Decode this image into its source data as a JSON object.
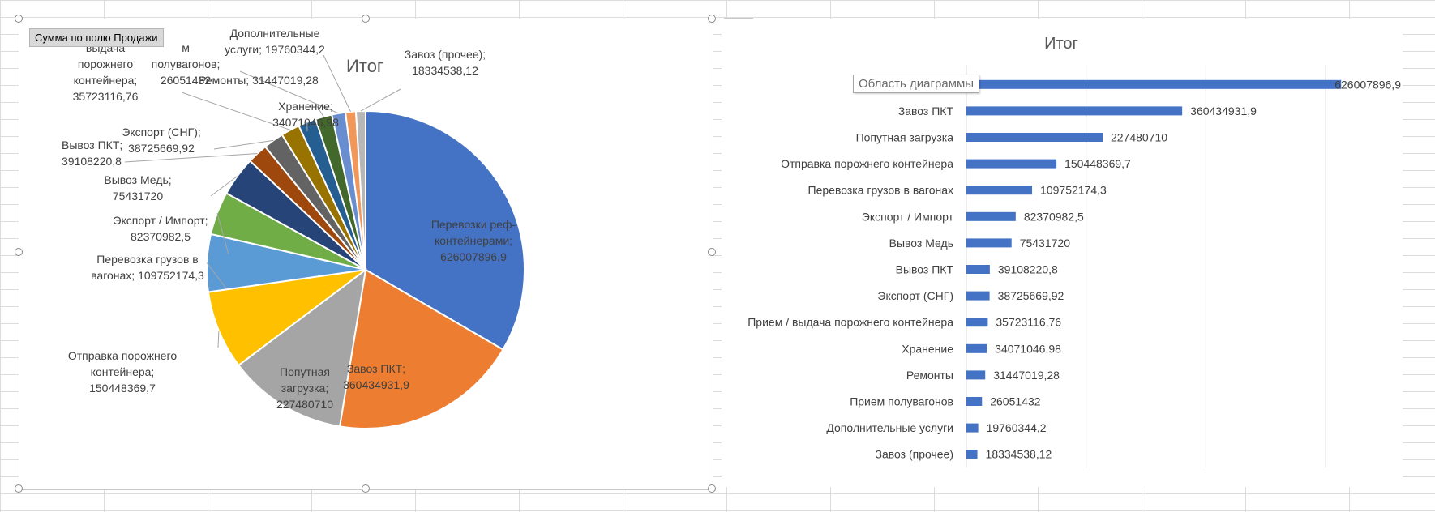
{
  "pie_field_button": "Сумма по полю Продажи",
  "tooltip": "Область диаграммы",
  "chart_data": [
    {
      "type": "pie",
      "title": "Итог",
      "slices": [
        {
          "label": "Перевозки реф-контейнерами",
          "value": 626007896.9,
          "display": "626007896,9",
          "color": "#4472C4"
        },
        {
          "label": "Завоз ПКТ",
          "value": 360434931.9,
          "display": "360434931,9",
          "color": "#ED7D31"
        },
        {
          "label": "Попутная загрузка",
          "value": 227480710,
          "display": "227480710",
          "color": "#A5A5A5"
        },
        {
          "label": "Отправка порожнего контейнера",
          "value": 150448369.7,
          "display": "150448369,7",
          "color": "#FFC000"
        },
        {
          "label": "Перевозка грузов в вагонах",
          "value": 109752174.3,
          "display": "109752174,3",
          "color": "#5B9BD5"
        },
        {
          "label": "Экспорт / Импорт",
          "value": 82370982.5,
          "display": "82370982,5",
          "color": "#70AD47"
        },
        {
          "label": "Вывоз Медь",
          "value": 75431720,
          "display": "75431720",
          "color": "#264478"
        },
        {
          "label": "Вывоз ПКТ",
          "value": 39108220.8,
          "display": "39108220,8",
          "color": "#9E480E"
        },
        {
          "label": "Экспорт (СНГ)",
          "value": 38725669.92,
          "display": "38725669,92",
          "color": "#636363"
        },
        {
          "label": "Прием / выдача порожнего контейнера",
          "value": 35723116.76,
          "display": "35723116,76",
          "color": "#997300"
        },
        {
          "label": "Хранение",
          "value": 34071046.98,
          "display": "34071046,98",
          "color": "#255E91"
        },
        {
          "label": "Ремонты",
          "value": 31447019.28,
          "display": "31447019,28",
          "color": "#43682B"
        },
        {
          "label": "Прием полувагонов",
          "value": 26051432,
          "display": "26051432",
          "color": "#698ED0"
        },
        {
          "label": "Дополнительные услуги",
          "value": 19760344.2,
          "display": "19760344,2",
          "color": "#F1975A"
        },
        {
          "label": "Завоз (прочее)",
          "value": 18334538.12,
          "display": "18334538,12",
          "color": "#B7B7B7"
        }
      ],
      "data_labels": [
        {
          "lines": [
            "Перевозки реф-",
            "контейнерами;",
            "626007896,9"
          ]
        },
        {
          "lines": [
            "Завоз ПКТ;",
            "360434931,9"
          ]
        },
        {
          "lines": [
            "Попутная",
            "загрузка;",
            "227480710"
          ]
        },
        {
          "lines": [
            "Отправка порожнего",
            "контейнера;",
            "150448369,7"
          ]
        },
        {
          "lines": [
            "Перевозка грузов в",
            "вагонах; 109752174,3"
          ]
        },
        {
          "lines": [
            "Экспорт / Импорт;",
            "82370982,5"
          ]
        },
        {
          "lines": [
            "Вывоз Медь;",
            "75431720"
          ]
        },
        {
          "lines": [
            "Вывоз ПКТ;",
            "39108220,8"
          ]
        },
        {
          "lines": [
            "Экспорт (СНГ);",
            "38725669,92"
          ]
        },
        {
          "lines": [
            "выдача",
            "порожнего",
            "контейнера;",
            "35723116,76"
          ]
        },
        {
          "lines": [
            "Хранение;",
            "34071046,98"
          ]
        },
        {
          "lines": [
            "Ремонты; 31447019,28"
          ]
        },
        {
          "lines": [
            "м",
            "полувагонов;",
            "26051432"
          ]
        },
        {
          "lines": [
            "Дополнительные",
            "услуги; 19760344,2"
          ]
        },
        {
          "lines": [
            "Завоз (прочее);",
            "18334538,12"
          ]
        }
      ]
    },
    {
      "type": "bar",
      "orientation": "horizontal",
      "title": "Итог",
      "color": "#4472C4",
      "xlim": [
        0,
        650000000
      ],
      "categories": [
        "Перевозки реф-контейнерами",
        "Завоз ПКТ",
        "Попутная загрузка",
        "Отправка порожнего контейнера",
        "Перевозка грузов в вагонах",
        "Экспорт / Импорт",
        "Вывоз Медь",
        "Вывоз ПКТ",
        "Экспорт (СНГ)",
        "Прием / выдача порожнего контейнера",
        "Хранение",
        "Ремонты",
        "Прием полувагонов",
        "Дополнительные услуги",
        "Завоз (прочее)"
      ],
      "category_labels": [
        "Перевозки р",
        "Завоз ПКТ",
        "Попутная загрузка",
        "Отправка порожнего контейнера",
        "Перевозка грузов в вагонах",
        "Экспорт / Импорт",
        "Вывоз Медь",
        "Вывоз ПКТ",
        "Экспорт (СНГ)",
        "Прием / выдача порожнего контейнера",
        "Хранение",
        "Ремонты",
        "Прием полувагонов",
        "Дополнительные услуги",
        "Завоз (прочее)"
      ],
      "values": [
        626007896.9,
        360434931.9,
        227480710,
        150448369.7,
        109752174.3,
        82370982.5,
        75431720,
        39108220.8,
        38725669.92,
        35723116.76,
        34071046.98,
        31447019.28,
        26051432,
        19760344.2,
        18334538.12
      ],
      "value_labels": [
        "626007896,9",
        "360434931,9",
        "227480710",
        "150448369,7",
        "109752174,3",
        "82370982,5",
        "75431720",
        "39108220,8",
        "38725669,92",
        "35723116,76",
        "34071046,98",
        "31447019,28",
        "26051432",
        "19760344,2",
        "18334538,12"
      ]
    }
  ]
}
